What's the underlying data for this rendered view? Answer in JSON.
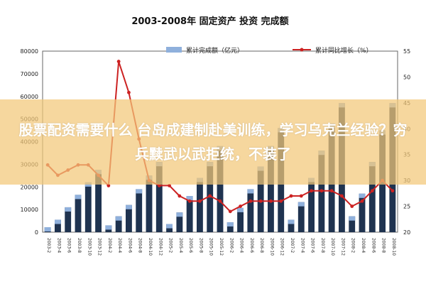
{
  "chart_data": {
    "type": "bar+line",
    "title": "2003-2008年 固定资产 投资 完成额",
    "legend": {
      "placement": "top",
      "bar_label": "累计完成额（亿元）",
      "line_label": "累计同比增长（%）"
    },
    "y_left": {
      "ylim": [
        0,
        80000
      ],
      "ticks": [
        "0",
        "10000",
        "20000",
        "30000",
        "40000",
        "50000",
        "60000",
        "70000",
        "80000"
      ]
    },
    "y_right": {
      "ylim": [
        20,
        55
      ],
      "ticks": [
        "20",
        "25",
        "30",
        "35",
        "40",
        "45",
        "50",
        "55"
      ]
    },
    "x_tick_labels": [
      "2003-2",
      "2003-4",
      "2003-6",
      "2003-8",
      "2003-10",
      "2003-12",
      "2004-2",
      "2004-4",
      "2004-6",
      "2004-8",
      "2004-10",
      "2004-12",
      "2005-2",
      "2005-4",
      "2005-6",
      "2005-8",
      "2005-10",
      "2005-12",
      "2006-2",
      "2006-4",
      "2006-6",
      "2006-8",
      "2006-10",
      "2006-12",
      "2007-2",
      "2007-4",
      "2007-6",
      "2007-8",
      "2007-10",
      "2007-12",
      "2008-2",
      "2008-4",
      "2008-6",
      "2008-8",
      "2008-10"
    ],
    "series": [
      {
        "kind": "bar",
        "color": "#1f3350",
        "highlight_color": "#8fb0dc",
        "values": [
          2200,
          5500,
          11000,
          16500,
          22000,
          27500,
          3000,
          7000,
          12000,
          19000,
          25000,
          31000,
          3600,
          8700,
          16000,
          24000,
          31000,
          38000,
          4400,
          10700,
          19000,
          29000,
          38000,
          46000,
          5500,
          13300,
          24000,
          36000,
          48000,
          57000,
          7000,
          17000,
          31000,
          45000,
          57000
        ]
      },
      {
        "kind": "line",
        "color": "#cc2222",
        "values": [
          33,
          31,
          32,
          33,
          33,
          31,
          29,
          53,
          47,
          38,
          30,
          29,
          29,
          27,
          26,
          26,
          27,
          26,
          24,
          25,
          26,
          26,
          26,
          26,
          27,
          27,
          28,
          28,
          28,
          27,
          25,
          26,
          28,
          30,
          28
        ]
      }
    ]
  },
  "header": {
    "title": "2003-2008年 固定资产 投资 完成额"
  },
  "legend": {
    "bar_label": "累计完成额（亿元）",
    "line_label": "累计同比增长（%）"
  },
  "overlay": {
    "headline": "股票配资需要什么 台岛成建制赴美训练，学习乌克兰经验？穷兵黩武以武拒统，不装了"
  }
}
